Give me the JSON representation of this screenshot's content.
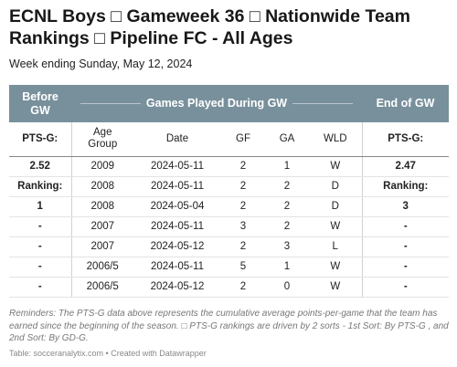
{
  "header": {
    "title": "ECNL Boys □ Gameweek 36 □ Nationwide Team Rankings □ Pipeline FC - All Ages",
    "subtitle": "Week ending Sunday, May 12, 2024"
  },
  "table": {
    "group_headers": {
      "before": "Before GW",
      "played": "Games Played During GW",
      "end": "End of GW"
    },
    "columns": {
      "pts_before": "PTS-G:",
      "age": "Age Group",
      "date": "Date",
      "gf": "GF",
      "ga": "GA",
      "wld": "WLD",
      "pts_end": "PTS-G:"
    },
    "rows": [
      {
        "before": "2.52",
        "age": "2009",
        "date": "2024-05-11",
        "gf": "2",
        "ga": "1",
        "wld": "W",
        "end": "2.47"
      },
      {
        "before": "Ranking:",
        "age": "2008",
        "date": "2024-05-11",
        "gf": "2",
        "ga": "2",
        "wld": "D",
        "end": "Ranking:"
      },
      {
        "before": "1",
        "age": "2008",
        "date": "2024-05-04",
        "gf": "2",
        "ga": "2",
        "wld": "D",
        "end": "3"
      },
      {
        "before": "-",
        "age": "2007",
        "date": "2024-05-11",
        "gf": "3",
        "ga": "2",
        "wld": "W",
        "end": "-"
      },
      {
        "before": "-",
        "age": "2007",
        "date": "2024-05-12",
        "gf": "2",
        "ga": "3",
        "wld": "L",
        "end": "-"
      },
      {
        "before": "-",
        "age": "2006/5",
        "date": "2024-05-11",
        "gf": "5",
        "ga": "1",
        "wld": "W",
        "end": "-"
      },
      {
        "before": "-",
        "age": "2006/5",
        "date": "2024-05-12",
        "gf": "2",
        "ga": "0",
        "wld": "W",
        "end": "-"
      }
    ]
  },
  "notes": "Reminders: The PTS-G data above represents the cumulative average points-per-game that the team has earned since the beginning of the season. □ PTS-G rankings are driven by 2 sorts - 1st Sort: By PTS-G , and 2nd Sort: By GD-G.",
  "source": "Table: socceranalytix.com • Created with Datawrapper",
  "colors": {
    "header_bg": "#78909c",
    "header_text": "#ffffff"
  }
}
